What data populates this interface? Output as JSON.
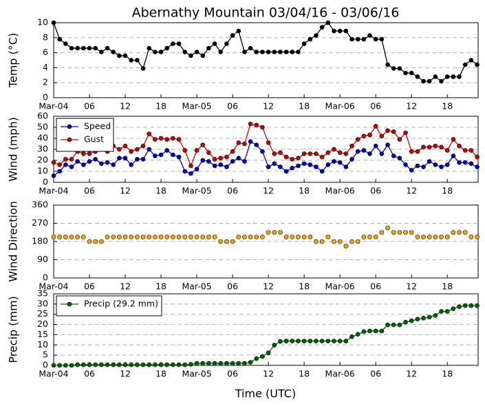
{
  "chart_data": [
    {
      "type": "line",
      "title": "Abernathy Mountain 03/04/16 - 03/06/16",
      "ylabel": "Temp (°C)",
      "categories": [
        "Mar-04",
        null,
        null,
        null,
        null,
        null,
        "06",
        null,
        null,
        null,
        null,
        null,
        "12",
        null,
        null,
        null,
        null,
        null,
        "18",
        null,
        null,
        null,
        null,
        null,
        "Mar-05",
        null,
        null,
        null,
        null,
        null,
        "06",
        null,
        null,
        null,
        null,
        null,
        "12",
        null,
        null,
        null,
        null,
        null,
        "18",
        null,
        null,
        null,
        null,
        null,
        "Mar-06",
        null,
        null,
        null,
        null,
        null,
        "06",
        null,
        null,
        null,
        null,
        null,
        "12",
        null,
        null,
        null,
        null,
        null,
        "18",
        null,
        null,
        null,
        null,
        null
      ],
      "series": [
        {
          "name": "Temp",
          "color": "#000000",
          "values": [
            10,
            7.8,
            7.2,
            6.6,
            6.6,
            6.6,
            6.6,
            6.6,
            6.1,
            6.6,
            6.1,
            5.6,
            5.6,
            5.0,
            5.0,
            3.9,
            6.6,
            6.1,
            6.1,
            6.6,
            7.2,
            7.2,
            6.1,
            5.6,
            6.1,
            5.6,
            6.6,
            7.2,
            6.1,
            7.2,
            8.3,
            8.9,
            6.1,
            6.6,
            6.1,
            6.1,
            6.1,
            6.1,
            6.1,
            6.1,
            6.1,
            6.1,
            7.2,
            7.8,
            8.3,
            9.4,
            10,
            8.9,
            8.9,
            8.9,
            7.8,
            7.8,
            7.8,
            8.3,
            7.8,
            7.8,
            4.4,
            3.9,
            3.9,
            3.3,
            3.3,
            2.8,
            2.2,
            2.2,
            2.8,
            2.2,
            2.8,
            2.8,
            2.8,
            4.4,
            5.0,
            4.4
          ]
        }
      ],
      "ylim": [
        0,
        10
      ],
      "yticks": [
        0,
        2,
        4,
        6,
        8,
        10
      ],
      "grid": true
    },
    {
      "type": "line",
      "ylabel": "Wind (mph)",
      "legend": "upper left",
      "categories": [
        "Mar-04",
        null,
        null,
        null,
        null,
        null,
        "06",
        null,
        null,
        null,
        null,
        null,
        "12",
        null,
        null,
        null,
        null,
        null,
        "18",
        null,
        null,
        null,
        null,
        null,
        "Mar-05",
        null,
        null,
        null,
        null,
        null,
        "06",
        null,
        null,
        null,
        null,
        null,
        "12",
        null,
        null,
        null,
        null,
        null,
        "18",
        null,
        null,
        null,
        null,
        null,
        "Mar-06",
        null,
        null,
        null,
        null,
        null,
        "06",
        null,
        null,
        null,
        null,
        null,
        "12",
        null,
        null,
        null,
        null,
        null,
        "18",
        null,
        null,
        null,
        null,
        null
      ],
      "series": [
        {
          "name": "Speed",
          "color": "#0000cc",
          "values": [
            6,
            10,
            16,
            14,
            19,
            16,
            19,
            21,
            17,
            18,
            16,
            22,
            22,
            16,
            21,
            21,
            30,
            24,
            25,
            29,
            25,
            23,
            10,
            8,
            12,
            20,
            19,
            15,
            16,
            14,
            19,
            22,
            19,
            37,
            34,
            28,
            14,
            17,
            14,
            10,
            13,
            15,
            17,
            16,
            14,
            10,
            16,
            19,
            18,
            14,
            21,
            28,
            29,
            26,
            33,
            26,
            34,
            24,
            22,
            16,
            11,
            15,
            14,
            19,
            16,
            14,
            16,
            24,
            18,
            18,
            17,
            14
          ]
        },
        {
          "name": "Gust",
          "color": "#cc0000",
          "values": [
            18,
            16,
            21,
            21,
            28,
            26,
            26,
            28,
            30,
            28,
            33,
            30,
            33,
            28,
            30,
            33,
            44,
            39,
            40,
            39,
            40,
            39,
            29,
            15,
            29,
            34,
            27,
            21,
            22,
            23,
            28,
            36,
            35,
            53,
            52,
            50,
            36,
            26,
            27,
            23,
            21,
            22,
            26,
            26,
            26,
            23,
            27,
            30,
            27,
            26,
            33,
            39,
            42,
            43,
            51,
            42,
            47,
            46,
            39,
            45,
            28,
            28,
            32,
            32,
            33,
            32,
            29,
            39,
            33,
            29,
            29,
            23
          ]
        }
      ],
      "ylim": [
        0,
        60
      ],
      "yticks": [
        0,
        10,
        20,
        30,
        40,
        50,
        60
      ],
      "grid": true
    },
    {
      "type": "line",
      "ylabel": "Wind Direction",
      "categories": [
        "Mar-04",
        null,
        null,
        null,
        null,
        null,
        "06",
        null,
        null,
        null,
        null,
        null,
        "12",
        null,
        null,
        null,
        null,
        null,
        "18",
        null,
        null,
        null,
        null,
        null,
        "Mar-05",
        null,
        null,
        null,
        null,
        null,
        "06",
        null,
        null,
        null,
        null,
        null,
        "12",
        null,
        null,
        null,
        null,
        null,
        "18",
        null,
        null,
        null,
        null,
        null,
        "Mar-06",
        null,
        null,
        null,
        null,
        null,
        "06",
        null,
        null,
        null,
        null,
        null,
        "12",
        null,
        null,
        null,
        null,
        null,
        "18",
        null,
        null,
        null,
        null,
        null
      ],
      "series": [
        {
          "name": "Direction",
          "color": "#ffa500",
          "markers_only": true,
          "values": [
            202.5,
            202.5,
            202.5,
            202.5,
            202.5,
            202.5,
            180,
            180,
            180,
            202.5,
            202.5,
            202.5,
            202.5,
            202.5,
            202.5,
            202.5,
            202.5,
            202.5,
            202.5,
            202.5,
            202.5,
            202.5,
            202.5,
            202.5,
            202.5,
            202.5,
            202.5,
            202.5,
            180,
            180,
            180,
            202.5,
            202.5,
            202.5,
            202.5,
            202.5,
            225,
            225,
            225,
            202.5,
            202.5,
            202.5,
            202.5,
            202.5,
            180,
            180,
            202.5,
            180,
            180,
            157.5,
            180,
            180,
            202.5,
            202.5,
            202.5,
            225,
            247.5,
            225,
            225,
            225,
            225,
            202.5,
            202.5,
            202.5,
            202.5,
            202.5,
            202.5,
            225,
            225,
            225,
            202.5,
            202.5
          ]
        }
      ],
      "ylim": [
        0,
        360
      ],
      "yticks": [
        0,
        90,
        180,
        270,
        360
      ],
      "grid": true
    },
    {
      "type": "line",
      "ylabel": "Precip (mm)",
      "xlabel": "Time (UTC)",
      "legend": "upper left",
      "categories": [
        "Mar-04",
        null,
        null,
        null,
        null,
        null,
        "06",
        null,
        null,
        null,
        null,
        null,
        "12",
        null,
        null,
        null,
        null,
        null,
        "18",
        null,
        null,
        null,
        null,
        null,
        "Mar-05",
        null,
        null,
        null,
        null,
        null,
        "06",
        null,
        null,
        null,
        null,
        null,
        "12",
        null,
        null,
        null,
        null,
        null,
        "18",
        null,
        null,
        null,
        null,
        null,
        "Mar-06",
        null,
        null,
        null,
        null,
        null,
        "06",
        null,
        null,
        null,
        null,
        null,
        "12",
        null,
        null,
        null,
        null,
        null,
        "18",
        null,
        null,
        null,
        null,
        null
      ],
      "series": [
        {
          "name": "Precip (29.2 mm)",
          "color": "#006400",
          "values": [
            0,
            0,
            0,
            0,
            0.3,
            0.3,
            0.3,
            0.3,
            0.3,
            0.3,
            0.3,
            0.3,
            0.3,
            0.3,
            0.3,
            0.3,
            0.3,
            0.3,
            0.3,
            0.3,
            0.3,
            0.3,
            0.3,
            0.5,
            1.0,
            1.0,
            1.0,
            1.0,
            1.0,
            1.0,
            1.0,
            1.0,
            1.0,
            1.5,
            3.3,
            4.3,
            6.1,
            9.9,
            11.7,
            11.9,
            11.9,
            11.9,
            11.9,
            11.9,
            11.9,
            11.9,
            11.9,
            11.9,
            11.9,
            11.9,
            14,
            15.2,
            16.5,
            16.8,
            16.8,
            16.8,
            19.8,
            19.8,
            19.8,
            21.1,
            21.8,
            22.6,
            23.1,
            23.6,
            24.4,
            26.4,
            26.4,
            27.7,
            28.7,
            29.2,
            29.2,
            29.2
          ]
        }
      ],
      "ylim": [
        0,
        35
      ],
      "yticks": [
        0,
        5,
        10,
        15,
        20,
        25,
        30,
        35
      ],
      "grid": true
    }
  ]
}
